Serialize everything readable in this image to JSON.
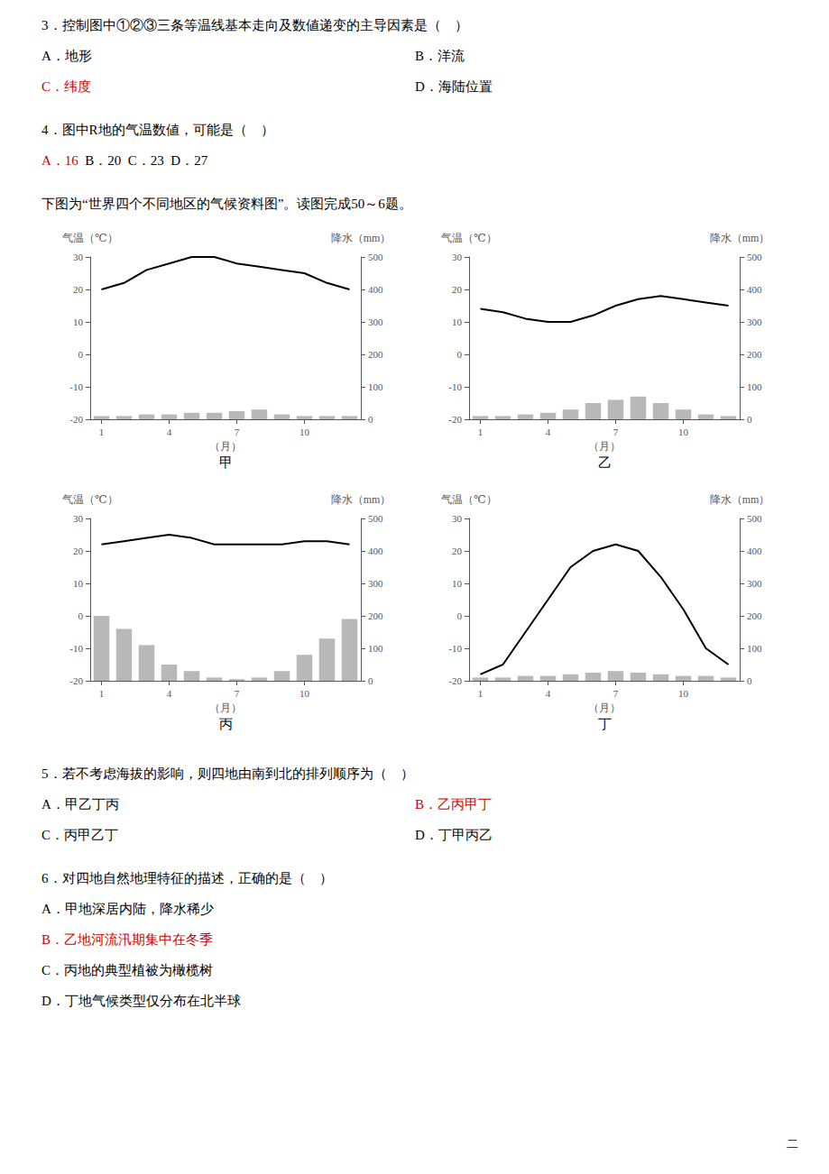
{
  "annotations": [
    [
      [
        {
          "text": "3．控制图中①②③三条等温线基本走向及数値递变的主导因素是（    ）",
          "color": "#000000"
        }
      ]
    ],
    [
      [
        {
          "text": "A．地形",
          "color": "#000000"
        }
      ],
      [
        {
          "text": "B．洋流",
          "color": "#000000"
        }
      ]
    ],
    [
      [
        {
          "text": "C．纬度",
          "color": "#cc0000"
        }
      ],
      [
        {
          "text": "D．海陆位置",
          "color": "#000000"
        }
      ]
    ],
    [
      [
        {
          "text": "4．图中R地的气温数値，可能是（    ）",
          "color": "#000000"
        }
      ]
    ],
    [
      [
        {
          "text": "A．",
          "color": "#cc0000"
        },
        {
          "text": "16",
          "color": "#cc0000"
        },
        {
          "text": "  B．20  C．23  D．27",
          "color": "#000000"
        }
      ]
    ],
    [
      [
        {
          "text": "下图为“世界四个不同地区的气候资料图”。读图完成50～6题。",
          "color": "#000000"
        }
      ]
    ],
    [
      [
        {
          "text": "5．若不考虑海拔的影响，则四地由南到北的排列顺序为（    ）",
          "color": "#000000"
        }
      ]
    ],
    [
      [
        {
          "text": "A．甲乙丁丙",
          "color": "#000000"
        }
      ],
      [
        {
          "text": "B．乙丙甲丁",
          "color": "#cc0000"
        }
      ]
    ],
    [
      [
        {
          "text": "C．丙甲乙丁",
          "color": "#000000"
        }
      ],
      [
        {
          "text": "D．丁甲丙乙",
          "color": "#000000"
        }
      ]
    ],
    [
      [
        {
          "text": "6．对四地自然地理特征的描述，正确的是（    ）",
          "color": "#000000"
        }
      ]
    ],
    [
      [
        {
          "text": "A．甲地深居内陆，降水稀少",
          "color": "#000000"
        }
      ]
    ],
    [
      [
        {
          "text": "B．乙地河流汛期集中在冬季",
          "color": "#cc0000"
        }
      ]
    ],
    [
      [
        {
          "text": "C．丙地的典型植被为橄榄树",
          "color": "#000000"
        }
      ]
    ],
    [
      [
        {
          "text": "D．丁地气候类型仅分布在北半球",
          "color": "#000000"
        }
      ]
    ],
    [
      [
        {
          "text": "二",
          "color": "#000000"
        }
      ]
    ]
  ],
  "chart_data": [
    {
      "type": "bar",
      "title": "甲",
      "xlabel": "（月）",
      "ylabel": "气温（℃）",
      "y2label": "降水（mm）",
      "x": [
        1,
        2,
        3,
        4,
        5,
        6,
        7,
        8,
        9,
        10,
        11,
        12
      ],
      "xlim": [
        0.5,
        12.5
      ],
      "xticks": [
        1,
        4,
        7,
        10
      ],
      "ylim": [
        -20,
        30
      ],
      "yticks": [
        -20,
        -10,
        0,
        10,
        20,
        30
      ],
      "y2lim": [
        0,
        500
      ],
      "y2ticks": [
        0,
        100,
        200,
        300,
        400,
        500
      ],
      "grid": false,
      "series": [
        {
          "type": "bar",
          "axis": "y2",
          "color": "#b8b8b8",
          "values": [
            10,
            10,
            15,
            15,
            20,
            20,
            25,
            30,
            15,
            10,
            10,
            10
          ]
        },
        {
          "type": "line",
          "color": "#000000",
          "values": [
            20,
            22,
            26,
            28,
            30,
            30,
            28,
            27,
            26,
            25,
            22,
            20
          ]
        }
      ]
    },
    {
      "type": "bar",
      "title": "乙",
      "xlabel": "（月）",
      "ylabel": "气温（℃）",
      "y2label": "降水（mm）",
      "x": [
        1,
        2,
        3,
        4,
        5,
        6,
        7,
        8,
        9,
        10,
        11,
        12
      ],
      "xlim": [
        0.5,
        12.5
      ],
      "xticks": [
        1,
        4,
        7,
        10
      ],
      "ylim": [
        -20,
        30
      ],
      "yticks": [
        -20,
        -10,
        0,
        10,
        20,
        30
      ],
      "y2lim": [
        0,
        500
      ],
      "y2ticks": [
        0,
        100,
        200,
        300,
        400,
        500
      ],
      "grid": false,
      "series": [
        {
          "type": "bar",
          "axis": "y2",
          "color": "#b8b8b8",
          "values": [
            10,
            10,
            15,
            20,
            30,
            50,
            60,
            70,
            50,
            30,
            15,
            10
          ]
        },
        {
          "type": "line",
          "color": "#000000",
          "values": [
            14,
            13,
            11,
            10,
            10,
            12,
            15,
            17,
            18,
            17,
            16,
            15
          ]
        }
      ]
    },
    {
      "type": "bar",
      "title": "丙",
      "xlabel": "（月）",
      "ylabel": "气温（℃）",
      "y2label": "降水（mm）",
      "x": [
        1,
        2,
        3,
        4,
        5,
        6,
        7,
        8,
        9,
        10,
        11,
        12
      ],
      "xlim": [
        0.5,
        12.5
      ],
      "xticks": [
        1,
        4,
        7,
        10
      ],
      "ylim": [
        -20,
        30
      ],
      "yticks": [
        -20,
        -10,
        0,
        10,
        20,
        30
      ],
      "y2lim": [
        0,
        500
      ],
      "y2ticks": [
        0,
        100,
        200,
        300,
        400,
        500
      ],
      "grid": false,
      "series": [
        {
          "type": "bar",
          "axis": "y2",
          "color": "#b8b8b8",
          "values": [
            200,
            160,
            110,
            50,
            30,
            10,
            5,
            10,
            30,
            80,
            130,
            190
          ]
        },
        {
          "type": "line",
          "color": "#000000",
          "values": [
            22,
            23,
            24,
            25,
            24,
            22,
            22,
            22,
            22,
            23,
            23,
            22
          ]
        }
      ]
    },
    {
      "type": "bar",
      "title": "丁",
      "xlabel": "（月）",
      "ylabel": "气温（℃）",
      "y2label": "降水（mm）",
      "x": [
        1,
        2,
        3,
        4,
        5,
        6,
        7,
        8,
        9,
        10,
        11,
        12
      ],
      "xlim": [
        0.5,
        12.5
      ],
      "xticks": [
        1,
        4,
        7,
        10
      ],
      "ylim": [
        -20,
        30
      ],
      "yticks": [
        -20,
        -10,
        0,
        10,
        20,
        30
      ],
      "y2lim": [
        0,
        500
      ],
      "y2ticks": [
        0,
        100,
        200,
        300,
        400,
        500
      ],
      "grid": false,
      "series": [
        {
          "type": "bar",
          "axis": "y2",
          "color": "#b8b8b8",
          "values": [
            10,
            10,
            15,
            15,
            20,
            25,
            30,
            25,
            20,
            15,
            15,
            10
          ]
        },
        {
          "type": "line",
          "color": "#000000",
          "values": [
            -18,
            -15,
            -5,
            5,
            15,
            20,
            22,
            20,
            12,
            2,
            -10,
            -15
          ]
        }
      ]
    }
  ]
}
